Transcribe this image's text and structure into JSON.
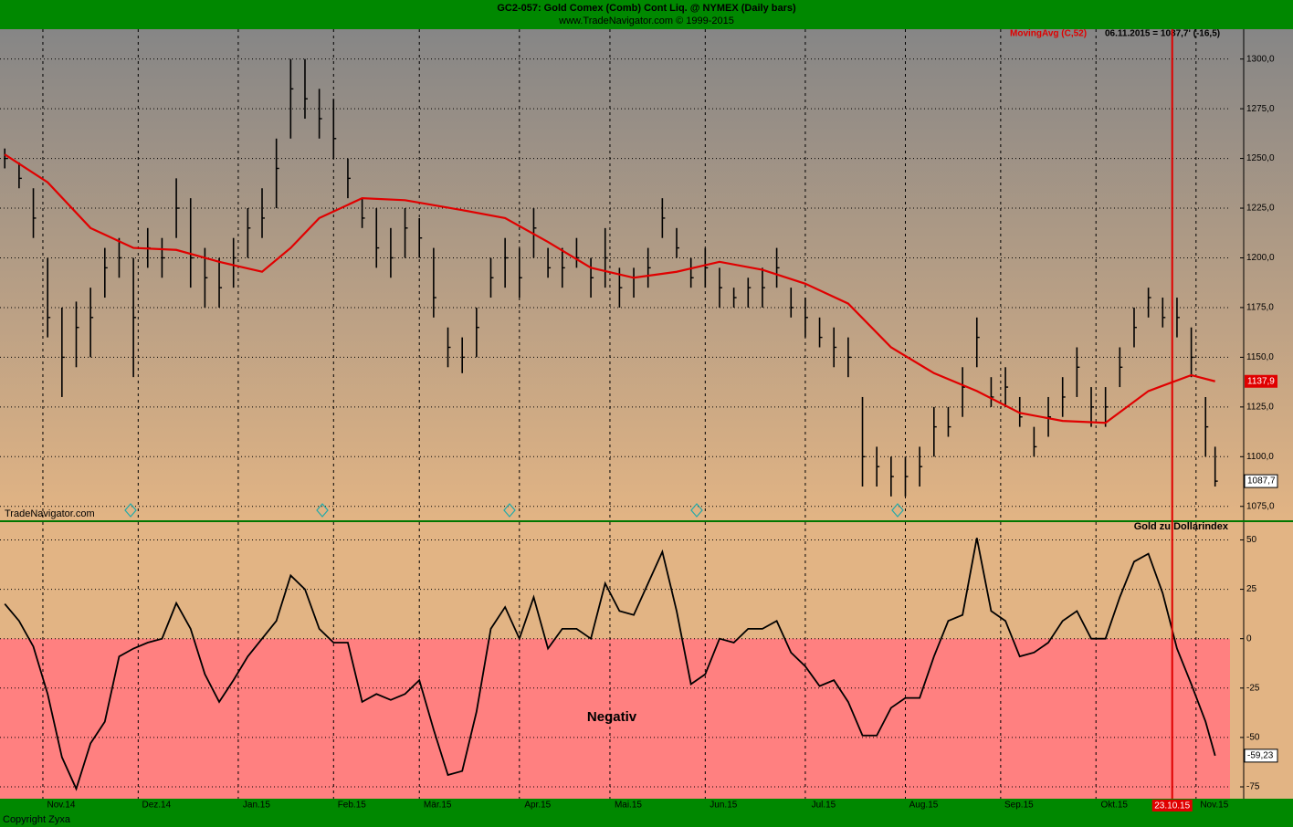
{
  "chart_data": [
    {
      "type": "ohlc",
      "title": "GC2-057:  Gold Comex (Comb) Cont Liq. @ NYMEX  (Daily bars)",
      "subtitle": "www.TradeNavigator.com © 1999-2015",
      "annotation": "06.11.2015 = 1087,7' (-16,5)",
      "watermark": "TradeNavigator.com",
      "footer": "Copyright Zyxa",
      "color": "#000000",
      "x": [
        0,
        3,
        6,
        9,
        12,
        15,
        18,
        21,
        24,
        27,
        30,
        33,
        36,
        39,
        42,
        45,
        48,
        51,
        54,
        57,
        60,
        63,
        66,
        69,
        72,
        75,
        78,
        81,
        84,
        87,
        90,
        93,
        96,
        99,
        102,
        105,
        108,
        111,
        114,
        117,
        120,
        123,
        126,
        129,
        132,
        135,
        138,
        141,
        144,
        147,
        150,
        153,
        156,
        159,
        162,
        165,
        168,
        171,
        174,
        177,
        180,
        183,
        186,
        189,
        192,
        195,
        198,
        201,
        204,
        207,
        210,
        213,
        216,
        219,
        222,
        225,
        228,
        231,
        234,
        237,
        240,
        243,
        246,
        249,
        252,
        254
      ],
      "high": [
        1255,
        1248,
        1235,
        1200,
        1175,
        1178,
        1185,
        1205,
        1210,
        1200,
        1215,
        1210,
        1240,
        1230,
        1205,
        1200,
        1210,
        1225,
        1235,
        1260,
        1300,
        1300,
        1285,
        1280,
        1250,
        1230,
        1225,
        1215,
        1225,
        1220,
        1205,
        1165,
        1160,
        1175,
        1200,
        1210,
        1205,
        1225,
        1205,
        1205,
        1210,
        1200,
        1215,
        1195,
        1195,
        1205,
        1230,
        1215,
        1200,
        1205,
        1195,
        1185,
        1190,
        1195,
        1205,
        1185,
        1180,
        1170,
        1165,
        1160,
        1130,
        1105,
        1100,
        1100,
        1105,
        1125,
        1125,
        1145,
        1170,
        1140,
        1145,
        1130,
        1115,
        1130,
        1140,
        1155,
        1135,
        1135,
        1155,
        1175,
        1185,
        1180,
        1180,
        1165,
        1130,
        1105
      ],
      "low": [
        1245,
        1235,
        1210,
        1160,
        1130,
        1145,
        1150,
        1180,
        1190,
        1140,
        1195,
        1190,
        1210,
        1185,
        1175,
        1175,
        1185,
        1200,
        1210,
        1225,
        1260,
        1270,
        1260,
        1250,
        1230,
        1215,
        1195,
        1190,
        1200,
        1200,
        1170,
        1145,
        1142,
        1150,
        1180,
        1185,
        1180,
        1200,
        1190,
        1185,
        1195,
        1180,
        1185,
        1175,
        1180,
        1185,
        1210,
        1200,
        1185,
        1185,
        1175,
        1175,
        1175,
        1175,
        1185,
        1170,
        1160,
        1155,
        1145,
        1140,
        1085,
        1085,
        1080,
        1080,
        1085,
        1100,
        1110,
        1120,
        1145,
        1125,
        1125,
        1115,
        1100,
        1110,
        1120,
        1130,
        1115,
        1115,
        1135,
        1155,
        1170,
        1165,
        1160,
        1140,
        1100,
        1085
      ],
      "close": [
        1250,
        1240,
        1220,
        1170,
        1150,
        1165,
        1170,
        1195,
        1200,
        1170,
        1205,
        1200,
        1225,
        1200,
        1190,
        1185,
        1200,
        1215,
        1220,
        1245,
        1285,
        1280,
        1270,
        1260,
        1240,
        1220,
        1205,
        1200,
        1215,
        1210,
        1180,
        1155,
        1150,
        1165,
        1190,
        1200,
        1190,
        1215,
        1195,
        1195,
        1200,
        1190,
        1200,
        1185,
        1190,
        1195,
        1220,
        1205,
        1190,
        1195,
        1185,
        1180,
        1185,
        1185,
        1195,
        1175,
        1170,
        1160,
        1155,
        1150,
        1100,
        1095,
        1090,
        1090,
        1095,
        1115,
        1115,
        1135,
        1160,
        1130,
        1135,
        1120,
        1105,
        1120,
        1130,
        1145,
        1125,
        1125,
        1145,
        1165,
        1180,
        1170,
        1170,
        1150,
        1115,
        1087.7
      ],
      "series": [
        {
          "name": "MovingAvg (C,52)",
          "color": "#e00000",
          "x": [
            0,
            9,
            18,
            27,
            36,
            45,
            54,
            60,
            66,
            75,
            84,
            96,
            105,
            114,
            123,
            132,
            141,
            150,
            159,
            168,
            177,
            186,
            195,
            204,
            213,
            222,
            231,
            240,
            249,
            254
          ],
          "values": [
            1252,
            1238,
            1215,
            1205,
            1204,
            1198,
            1193,
            1205,
            1220,
            1230,
            1229,
            1224,
            1220,
            1208,
            1195,
            1190,
            1193,
            1198,
            1194,
            1187,
            1177,
            1155,
            1142,
            1133,
            1122,
            1118,
            1117,
            1133,
            1141,
            1137.9
          ],
          "last_label": "1137,9"
        }
      ],
      "last_label": "1087,7",
      "xlim": [
        -1,
        260
      ],
      "ylim": [
        1068,
        1315
      ],
      "yticks": [
        {
          "value": 1075,
          "label": "1075,0"
        },
        {
          "value": 1100,
          "label": "1100,0"
        },
        {
          "value": 1125,
          "label": "1125,0"
        },
        {
          "value": 1150,
          "label": "1150,0"
        },
        {
          "value": 1175,
          "label": "1175,0"
        },
        {
          "value": 1200,
          "label": "1200,0"
        },
        {
          "value": 1225,
          "label": "1225,0"
        },
        {
          "value": 1250,
          "label": "1250,0"
        },
        {
          "value": 1275,
          "label": "1275,0"
        },
        {
          "value": 1300,
          "label": "1300,0"
        }
      ],
      "xticks": [
        {
          "value": 8,
          "label": "Nov.14"
        },
        {
          "value": 28,
          "label": "Dez.14"
        },
        {
          "value": 49,
          "label": "Jan.15"
        },
        {
          "value": 69,
          "label": "Feb.15"
        },
        {
          "value": 87,
          "label": "Mär.15"
        },
        {
          "value": 108,
          "label": "Apr.15"
        },
        {
          "value": 127,
          "label": "Mai.15"
        },
        {
          "value": 147,
          "label": "Jun.15"
        },
        {
          "value": 168,
          "label": "Jul.15"
        },
        {
          "value": 189,
          "label": "Aug.15"
        },
        {
          "value": 209,
          "label": "Sep.15"
        },
        {
          "value": 229,
          "label": "Okt.15"
        },
        {
          "value": 250,
          "label": "Nov.15"
        }
      ],
      "cursor": {
        "x": 245,
        "label": "23.10.15",
        "color": "#e00000"
      },
      "grid": true
    },
    {
      "type": "line",
      "title": "Gold zu Dollarindex",
      "color": "#000000",
      "x": [
        0,
        3,
        6,
        9,
        12,
        15,
        18,
        21,
        24,
        27,
        30,
        33,
        36,
        39,
        42,
        45,
        48,
        51,
        54,
        57,
        60,
        63,
        66,
        69,
        72,
        75,
        78,
        81,
        84,
        87,
        90,
        93,
        96,
        99,
        102,
        105,
        108,
        111,
        114,
        117,
        120,
        123,
        126,
        129,
        132,
        135,
        138,
        141,
        144,
        147,
        150,
        153,
        156,
        159,
        162,
        165,
        168,
        171,
        174,
        177,
        180,
        183,
        186,
        189,
        192,
        195,
        198,
        201,
        204,
        207,
        210,
        213,
        216,
        219,
        222,
        225,
        228,
        231,
        234,
        237,
        240,
        243,
        246,
        249,
        252,
        254
      ],
      "values": [
        17.6,
        9,
        -4,
        -28,
        -60,
        -76,
        -53,
        -42,
        -9,
        -5,
        -2,
        0,
        18,
        5,
        -18,
        -32,
        -21,
        -9,
        0,
        9,
        32,
        25,
        5,
        -2,
        -2,
        -32,
        -28,
        -31,
        -28,
        -21,
        -46,
        -69,
        -67,
        -37,
        5,
        16,
        0,
        21,
        -5,
        5,
        5,
        0,
        28,
        14,
        12,
        28,
        44,
        14,
        -23,
        -18,
        0,
        -2,
        5,
        5,
        9,
        -7,
        -14,
        -24,
        -21,
        -32,
        -49,
        -49,
        -35,
        -30,
        -30,
        -9,
        9,
        12,
        51,
        14,
        9,
        -9,
        -7,
        -2,
        9,
        14,
        0,
        0,
        21,
        39,
        43,
        23,
        -5,
        -23,
        -42,
        -59.23
      ],
      "last_label": "-59,23",
      "zone": {
        "label": "Negativ",
        "from": 0,
        "color": "#ff8080"
      },
      "xlim": [
        -1,
        260
      ],
      "ylim": [
        -81,
        59
      ],
      "yticks": [
        -75,
        -50,
        -25,
        0,
        25,
        50
      ],
      "grid": true
    }
  ]
}
